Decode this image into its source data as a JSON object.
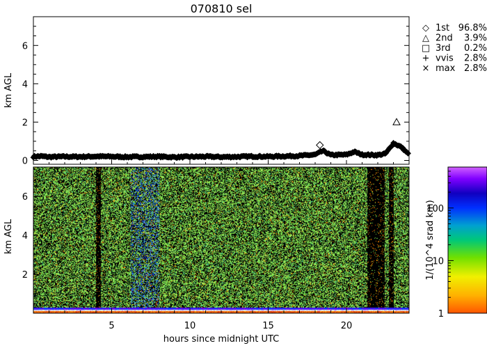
{
  "chart_data": [
    {
      "type": "scatter",
      "title": "070810 sel",
      "ylabel": "km AGL",
      "xlim": [
        0,
        24
      ],
      "ylim": [
        -0.2,
        7.5
      ],
      "yticks": [
        0,
        2,
        4,
        6
      ],
      "legend_position": "top-right, outside plot",
      "legend": [
        {
          "marker": "diamond",
          "symbol": "◇",
          "name": "1st",
          "value": "96.8%"
        },
        {
          "marker": "triangle",
          "symbol": "△",
          "name": "2nd",
          "value": "3.9%"
        },
        {
          "marker": "square",
          "symbol": "□",
          "name": "3rd",
          "value": "0.2%"
        },
        {
          "marker": "plus",
          "symbol": "+",
          "name": "vvis",
          "value": "2.8%"
        },
        {
          "marker": "cross",
          "symbol": "×",
          "name": "max",
          "value": "2.8%"
        }
      ],
      "cloud_base_profile": [
        [
          0.0,
          0.2
        ],
        [
          0.5,
          0.22
        ],
        [
          1.0,
          0.18
        ],
        [
          2.0,
          0.2
        ],
        [
          3.0,
          0.19
        ],
        [
          4.0,
          0.21
        ],
        [
          5.0,
          0.2
        ],
        [
          6.0,
          0.18
        ],
        [
          7.0,
          0.19
        ],
        [
          8.0,
          0.2
        ],
        [
          9.0,
          0.17
        ],
        [
          10.0,
          0.19
        ],
        [
          11.0,
          0.2
        ],
        [
          12.0,
          0.18
        ],
        [
          13.0,
          0.19
        ],
        [
          14.0,
          0.21
        ],
        [
          15.0,
          0.2
        ],
        [
          16.0,
          0.22
        ],
        [
          17.0,
          0.24
        ],
        [
          18.0,
          0.3
        ],
        [
          18.5,
          0.5
        ],
        [
          19.0,
          0.28
        ],
        [
          20.0,
          0.3
        ],
        [
          20.5,
          0.45
        ],
        [
          21.0,
          0.3
        ],
        [
          22.0,
          0.28
        ],
        [
          22.5,
          0.35
        ],
        [
          23.0,
          0.9
        ],
        [
          23.5,
          0.7
        ],
        [
          24.0,
          0.3
        ]
      ],
      "second_layer_points": [
        {
          "x": 18.3,
          "y": 0.8,
          "marker": "diamond"
        },
        {
          "x": 23.2,
          "y": 2.0,
          "marker": "triangle"
        }
      ]
    },
    {
      "type": "heatmap",
      "xlabel": "hours since midnight UTC",
      "ylabel": "km AGL",
      "xlim": [
        0,
        24
      ],
      "xticks": [
        5,
        10,
        15,
        20
      ],
      "ylim": [
        0,
        7.5
      ],
      "yticks": [
        2,
        4,
        6
      ],
      "colorbar": {
        "label": "1/(10^4 srad km)",
        "scale": "log",
        "range": [
          1,
          600
        ],
        "ticks": [
          1,
          10,
          100
        ]
      },
      "features": {
        "dark_bands_hours": [
          [
            4.0,
            4.3
          ],
          [
            21.3,
            22.4
          ],
          [
            22.7,
            23.0
          ]
        ],
        "elevated_signal_band_hours": [
          6.2,
          8.0
        ],
        "surface_layer_km": [
          0.0,
          0.3
        ]
      }
    }
  ]
}
